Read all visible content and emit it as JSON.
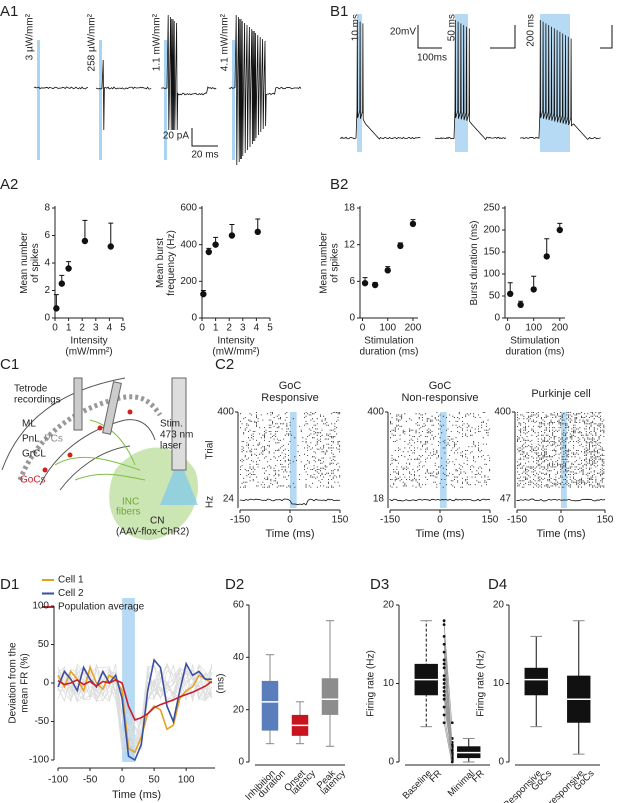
{
  "chart_data": [
    {
      "type": "traces",
      "panel": "A1",
      "labels": [
        "3 µW/mm²",
        "258 µW/mm²",
        "1.1 mW/mm²",
        "4.1 mW/mm²"
      ],
      "scalebar": [
        "20 pA",
        "20 ms"
      ]
    },
    {
      "type": "scatter",
      "panel": "A2",
      "x": [
        0.1,
        0.5,
        1,
        2.2,
        4.1
      ],
      "values": [
        0.7,
        2.5,
        3.6,
        5.6,
        5.2
      ],
      "errors": [
        1,
        0.6,
        0.5,
        1.5,
        1.7
      ],
      "xlim": [
        0,
        5
      ],
      "ylim": [
        0,
        8
      ],
      "xticks": [
        0,
        1,
        2,
        3,
        4,
        5
      ],
      "yticks": [
        0,
        2,
        4,
        6,
        8
      ],
      "ylabel": [
        "Mean number",
        "of spikes"
      ],
      "xlabel": [
        "Intensity",
        "(mW/mm²)"
      ],
      "color": "#111111"
    },
    {
      "type": "scatter",
      "x": [
        0.1,
        0.5,
        1,
        2.2,
        4.1
      ],
      "values": [
        130,
        360,
        400,
        450,
        470
      ],
      "errors": [
        20,
        20,
        40,
        60,
        70
      ],
      "xlim": [
        0,
        5
      ],
      "ylim": [
        0,
        600
      ],
      "xticks": [
        0,
        1,
        2,
        3,
        4,
        5
      ],
      "yticks": [
        0,
        200,
        400,
        600
      ],
      "ylabel": [
        "Mean burst",
        "frequency (Hz)"
      ],
      "xlabel": [
        "Intensity",
        "(mW/mm²)"
      ],
      "color": "#111111"
    },
    {
      "type": "scatter",
      "panel": "B2",
      "x": [
        10,
        50,
        100,
        150,
        200
      ],
      "values": [
        5.7,
        5.4,
        7.8,
        11.8,
        15.4
      ],
      "errors": [
        0.9,
        0.4,
        0.6,
        0.5,
        0.7
      ],
      "xlim": [
        -10,
        220
      ],
      "ylim": [
        0,
        18
      ],
      "xticks": [
        0,
        100,
        200
      ],
      "yticks": [
        0,
        6,
        12,
        18
      ],
      "ylabel": [
        "Mean number",
        "of spikes"
      ],
      "xlabel": [
        "Stimulation",
        "duration (ms)"
      ],
      "color": "#111111"
    },
    {
      "type": "scatter",
      "x": [
        10,
        50,
        100,
        150,
        200
      ],
      "values": [
        55,
        30,
        65,
        140,
        200
      ],
      "errors": [
        25,
        8,
        30,
        40,
        15
      ],
      "xlim": [
        -10,
        220
      ],
      "ylim": [
        0,
        250
      ],
      "xticks": [
        0,
        100,
        200
      ],
      "yticks": [
        0,
        50,
        100,
        150,
        200,
        250
      ],
      "ylabel": [
        "Burst duration (ms)"
      ],
      "xlabel": [
        "Stimulation",
        "duration (ms)"
      ],
      "color": "#111111"
    },
    {
      "type": "traces",
      "panel": "B1",
      "labels": [
        "10 ms",
        "50 ms",
        "200 ms"
      ],
      "scalebar": [
        "20mV",
        "100ms"
      ]
    },
    {
      "type": "diagram",
      "panel": "C1",
      "labels": [
        "Tetrode",
        "recordings",
        "ML",
        "PnL",
        "PCs",
        "GrCL",
        "GoCs",
        "Stim.",
        "473 nm",
        "laser",
        "INC",
        "fibers",
        "CN",
        "(AAV-flox-ChR2)"
      ]
    },
    {
      "type": "raster",
      "panel": "C2",
      "title": [
        "GoC",
        "Responsive"
      ],
      "xlim": [
        -150,
        150
      ],
      "xticks": [
        -150,
        0,
        150
      ],
      "yticks": [
        400
      ],
      "hz_tick": 24,
      "ylabel": "Trial",
      "hz_label": "Hz",
      "xlabel": "Time (ms)",
      "stim_window": [
        0,
        20
      ]
    },
    {
      "type": "raster",
      "title": [
        "GoC",
        "Non-responsive"
      ],
      "xlim": [
        -150,
        150
      ],
      "xticks": [
        -150,
        0,
        150
      ],
      "yticks": [
        400
      ],
      "hz_tick": 18,
      "xlabel": "Time (ms)",
      "stim_window": [
        0,
        20
      ]
    },
    {
      "type": "raster",
      "title": [
        "Purkinje cell"
      ],
      "xlim": [
        -150,
        150
      ],
      "xticks": [
        -150,
        0,
        150
      ],
      "yticks": [
        400
      ],
      "hz_tick": 47,
      "xlabel": "Time (ms)",
      "stim_window": [
        0,
        20
      ]
    },
    {
      "type": "line",
      "panel": "D1",
      "x": [
        -100,
        -90,
        -80,
        -70,
        -60,
        -50,
        -40,
        -30,
        -20,
        -10,
        0,
        10,
        20,
        30,
        40,
        50,
        60,
        70,
        80,
        90,
        100,
        110,
        120,
        130,
        140
      ],
      "series": [
        {
          "name": "Cell 1",
          "color": "#e8a020",
          "values": [
            10,
            -5,
            15,
            5,
            -10,
            20,
            0,
            -8,
            10,
            5,
            -10,
            -85,
            -90,
            -70,
            -40,
            -30,
            -35,
            -60,
            -55,
            -20,
            -10,
            -5,
            10,
            5,
            0
          ]
        },
        {
          "name": "Cell 2",
          "color": "#3a4fa0",
          "values": [
            -5,
            15,
            5,
            -10,
            20,
            5,
            -5,
            15,
            0,
            10,
            -20,
            -95,
            -100,
            -80,
            -10,
            30,
            20,
            -30,
            -50,
            -10,
            25,
            10,
            15,
            5,
            5
          ]
        },
        {
          "name": "Population average",
          "color": "#c8202a",
          "values": [
            3,
            -2,
            0,
            4,
            -2,
            2,
            -4,
            2,
            0,
            4,
            0,
            -30,
            -48,
            -45,
            -40,
            -32,
            -28,
            -25,
            -22,
            -18,
            -15,
            -12,
            -8,
            -4,
            2
          ]
        }
      ],
      "xlim": [
        -100,
        145
      ],
      "ylim": [
        -100,
        100
      ],
      "xticks": [
        -100,
        -50,
        0,
        50,
        100
      ],
      "yticks": [
        -100,
        -50,
        0,
        50,
        100
      ],
      "ylabel": [
        "Deviation from the",
        "mean FR (%)"
      ],
      "xlabel": "Time (ms)",
      "stim_window": [
        0,
        20
      ]
    },
    {
      "type": "box",
      "panel": "D2",
      "categories": [
        [
          "Inhibition",
          "duration"
        ],
        [
          "Onset",
          "latency"
        ],
        [
          "Peak",
          "latency"
        ]
      ],
      "whisker_low": [
        7,
        7,
        6
      ],
      "q1": [
        12,
        10,
        18
      ],
      "median": [
        23,
        14,
        24
      ],
      "q3": [
        31,
        18,
        32
      ],
      "whisker_high": [
        41,
        23,
        54
      ],
      "colors": [
        "#5a7dbb",
        "#c8141e",
        "#8c8c8c"
      ],
      "ylim": [
        0,
        60
      ],
      "yticks": [
        0,
        20,
        40,
        60
      ],
      "ylabel": "(ms)"
    },
    {
      "type": "box",
      "panel": "D3",
      "categories": [
        [
          "Baseline",
          "FR"
        ],
        [
          "Minimal",
          "FR"
        ]
      ],
      "whisker_low": [
        4.5,
        0
      ],
      "q1": [
        8.5,
        0.5
      ],
      "median": [
        10.5,
        1.2
      ],
      "q3": [
        12.5,
        2
      ],
      "whisker_high": [
        18,
        3
      ],
      "colors": [
        "#111111",
        "#111111"
      ],
      "whisker_style": [
        "dashed",
        "solid"
      ],
      "ylim": [
        0,
        20
      ],
      "yticks": [
        0,
        10,
        20
      ],
      "ylabel": "Firing rate (Hz)",
      "pairs": [
        [
          18,
          1
        ],
        [
          17.5,
          5
        ],
        [
          16,
          3
        ],
        [
          15,
          2
        ],
        [
          14,
          1.5
        ],
        [
          13,
          0.5
        ],
        [
          12.5,
          1.8
        ],
        [
          12,
          2.5
        ],
        [
          11,
          0.3
        ],
        [
          10.5,
          1
        ],
        [
          10,
          2
        ],
        [
          9.5,
          0.8
        ],
        [
          9,
          1.2
        ],
        [
          8.5,
          0.2
        ],
        [
          8,
          2.2
        ],
        [
          7,
          1.5
        ],
        [
          6,
          0.5
        ],
        [
          5,
          0
        ]
      ]
    },
    {
      "type": "box",
      "panel": "D4",
      "categories": [
        [
          "Responsive",
          "GoCs"
        ],
        [
          "Non-responsive",
          "GoCs"
        ]
      ],
      "whisker_low": [
        4.5,
        1
      ],
      "q1": [
        8.5,
        5
      ],
      "median": [
        10.5,
        8
      ],
      "q3": [
        12,
        11
      ],
      "whisker_high": [
        16,
        18
      ],
      "colors": [
        "#111111",
        "#111111"
      ],
      "ylim": [
        0,
        20
      ],
      "yticks": [
        0,
        10,
        20
      ],
      "ylabel": "Firing rate (Hz)"
    }
  ]
}
